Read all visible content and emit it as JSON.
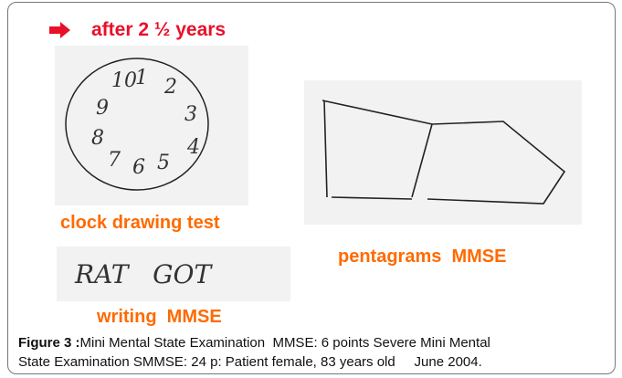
{
  "header": {
    "title": "after 2 ½ years"
  },
  "panels": [
    {
      "label": "clock drawing test",
      "numerals": [
        "10",
        "1",
        "2",
        "3",
        "4",
        "5",
        "6",
        "7",
        "8",
        "9"
      ]
    },
    {
      "label": "pentagrams  MMSE"
    },
    {
      "label": "writing  MMSE",
      "handwriting": "RAT   GOT"
    }
  ],
  "caption": {
    "label": "Figure 3 :",
    "lines": [
      "Mini Mental State Examination  MMSE: 6 points Severe Mini Mental",
      "State Examination SMMSE: 24 p: Patient female, 83 years old     June 2004."
    ]
  }
}
